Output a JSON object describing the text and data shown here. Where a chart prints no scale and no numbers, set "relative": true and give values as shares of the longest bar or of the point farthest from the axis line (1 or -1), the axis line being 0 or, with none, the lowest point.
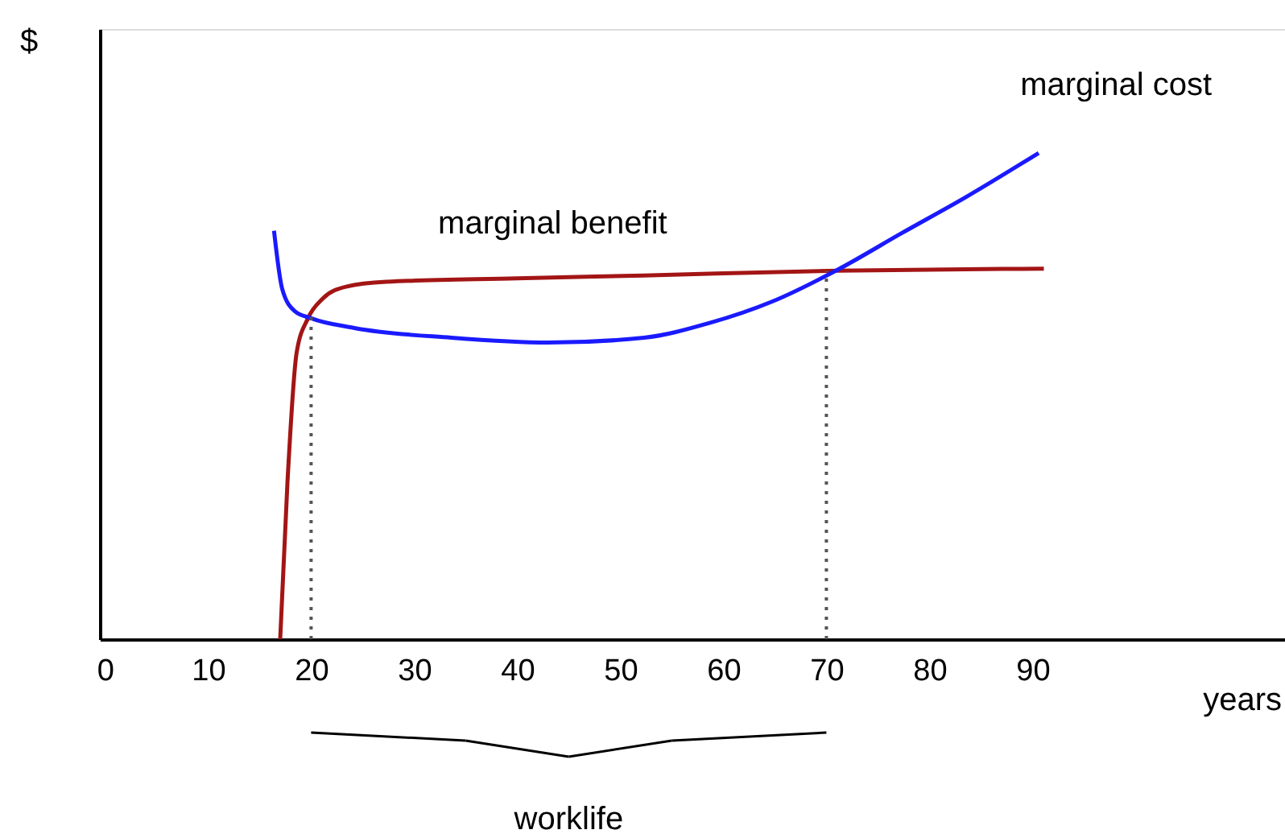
{
  "chart_data": {
    "type": "line",
    "relative": true,
    "xlabel": "years",
    "ylabel": "$",
    "xlim": [
      -0.5,
      114.5
    ],
    "xticks": [
      0,
      10,
      20,
      30,
      40,
      50,
      60,
      70,
      80,
      90
    ],
    "grid": false,
    "marker": "none",
    "line_style": "solid",
    "series": [
      {
        "name": "marginal benefit",
        "color": "#a31515",
        "x": [
          17,
          17.7,
          18.6,
          19.7,
          21.1,
          23.4,
          27.3,
          40,
          52.3,
          71.1,
          91.1
        ],
        "values": [
          0,
          0.32,
          0.59,
          0.66,
          0.7,
          0.725,
          0.735,
          0.742,
          0.748,
          0.758,
          0.762
        ]
      },
      {
        "name": "marginal cost",
        "color": "#1a1aff",
        "x": [
          16.4,
          17.2,
          18.4,
          20,
          24.2,
          33.6,
          43,
          52.3,
          58.6,
          64.8,
          71.1,
          77.3,
          83.6,
          90.6
        ],
        "values": [
          0.84,
          0.72,
          0.675,
          0.66,
          0.64,
          0.62,
          0.61,
          0.62,
          0.65,
          0.695,
          0.76,
          0.835,
          0.91,
          1.0
        ]
      }
    ],
    "ref_lines": [
      {
        "axis": "x",
        "value": 20,
        "line_style": "dotted",
        "color": "#555555"
      },
      {
        "axis": "x",
        "value": 70,
        "line_style": "dotted",
        "color": "#555555"
      }
    ],
    "annotations": [
      "worklife"
    ]
  }
}
